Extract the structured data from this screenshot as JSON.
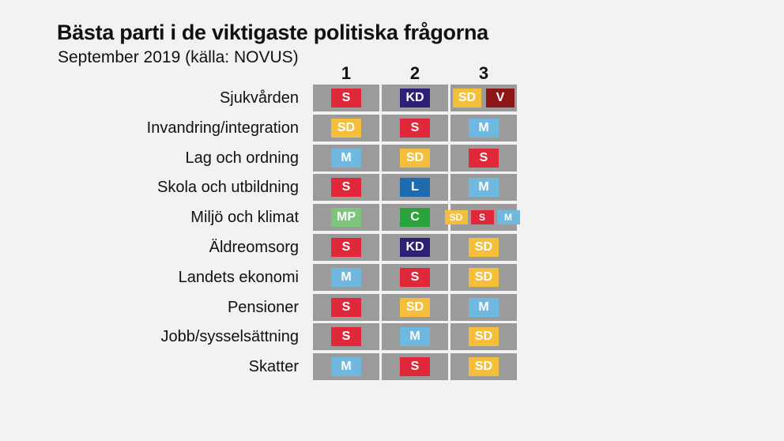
{
  "title": "Bästa parti i de viktigaste politiska frågorna",
  "subtitle": "September 2019 (källa: NOVUS)",
  "chart_data": {
    "type": "table",
    "columns": [
      "1",
      "2",
      "3"
    ],
    "rows": [
      {
        "label": "Sjukvården",
        "cells": [
          [
            "S"
          ],
          [
            "KD"
          ],
          [
            "SD",
            "V"
          ]
        ]
      },
      {
        "label": "Invandring/integration",
        "cells": [
          [
            "SD"
          ],
          [
            "S"
          ],
          [
            "M"
          ]
        ]
      },
      {
        "label": "Lag och ordning",
        "cells": [
          [
            "M"
          ],
          [
            "SD"
          ],
          [
            "S"
          ]
        ]
      },
      {
        "label": "Skola och utbildning",
        "cells": [
          [
            "S"
          ],
          [
            "L"
          ],
          [
            "M"
          ]
        ]
      },
      {
        "label": "Miljö och klimat",
        "cells": [
          [
            "MP"
          ],
          [
            "C"
          ],
          [
            "SD",
            "S",
            "M"
          ]
        ]
      },
      {
        "label": "Äldreomsorg",
        "cells": [
          [
            "S"
          ],
          [
            "KD"
          ],
          [
            "SD"
          ]
        ]
      },
      {
        "label": "Landets ekonomi",
        "cells": [
          [
            "M"
          ],
          [
            "S"
          ],
          [
            "SD"
          ]
        ]
      },
      {
        "label": "Pensioner",
        "cells": [
          [
            "S"
          ],
          [
            "SD"
          ],
          [
            "M"
          ]
        ]
      },
      {
        "label": "Jobb/sysselsättning",
        "cells": [
          [
            "S"
          ],
          [
            "M"
          ],
          [
            "SD"
          ]
        ]
      },
      {
        "label": "Skatter",
        "cells": [
          [
            "M"
          ],
          [
            "S"
          ],
          [
            "SD"
          ]
        ]
      }
    ],
    "party_colors": {
      "S": "#e0283a",
      "SD": "#f5bf3c",
      "M": "#6fb8e0",
      "KD": "#2b1f78",
      "V": "#8c1515",
      "L": "#1f6bb0",
      "C": "#2aa33c",
      "MP": "#7ec47a"
    },
    "cell_color": "#9b9b9b",
    "background": "#f2f2f2"
  }
}
